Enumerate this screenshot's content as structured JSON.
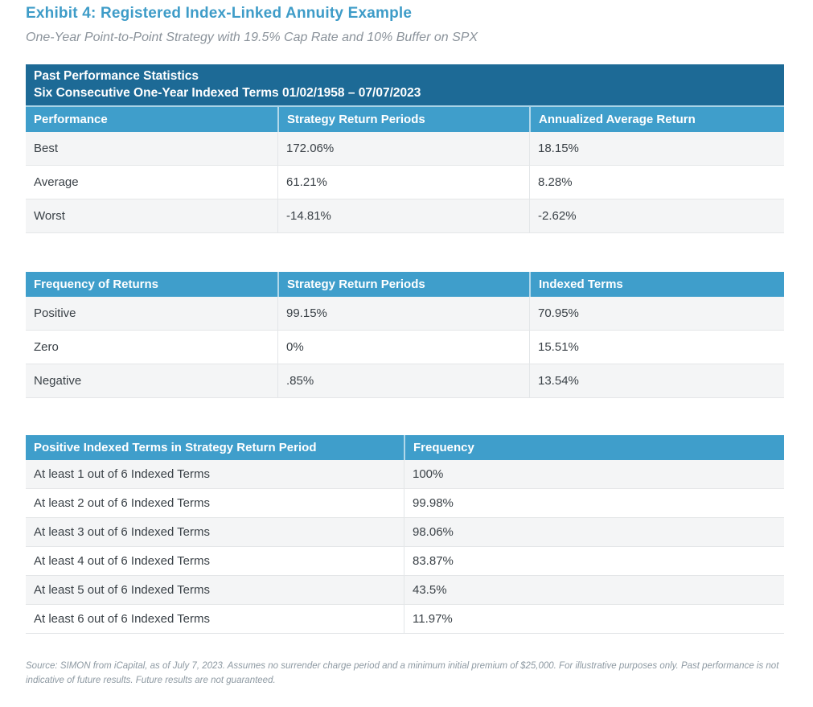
{
  "page": {
    "title": "Exhibit 4: Registered Index-Linked Annuity Example",
    "subtitle": "One-Year Point-to-Point Strategy with 19.5% Cap Rate and 10% Buffer on SPX",
    "source_note": "Source: SIMON from iCapital, as of July 7, 2023. Assumes no surrender charge period and a minimum initial premium of $25,000. For illustrative purposes only. Past performance is not indicative of future results. Future results are not guaranteed."
  },
  "colors": {
    "title_blue": "#3e9cc8",
    "banner_blue": "#1d6a96",
    "header_blue": "#3f9ecb",
    "row_alt_bg": "#f4f5f6",
    "body_text": "#3a4147",
    "muted_text": "#8d99a2"
  },
  "tables": [
    {
      "name": "past-performance-statistics",
      "banner_line1": "Past Performance Statistics",
      "banner_line2": "Six Consecutive One-Year Indexed Terms 01/02/1958 – 07/07/2023",
      "columns": [
        "Performance",
        "Strategy Return Periods",
        "Annualized Average Return"
      ],
      "rows": [
        [
          "Best",
          "172.06%",
          "18.15%"
        ],
        [
          "Average",
          "61.21%",
          "8.28%"
        ],
        [
          "Worst",
          "-14.81%",
          "-2.62%"
        ]
      ]
    },
    {
      "name": "frequency-of-returns",
      "columns": [
        "Frequency of Returns",
        "Strategy Return Periods",
        "Indexed Terms"
      ],
      "rows": [
        [
          "Positive",
          "99.15%",
          "70.95%"
        ],
        [
          "Zero",
          "0%",
          "15.51%"
        ],
        [
          "Negative",
          ".85%",
          "13.54%"
        ]
      ]
    },
    {
      "name": "positive-indexed-terms-frequency",
      "columns": [
        "Positive Indexed Terms in Strategy Return Period",
        "Frequency"
      ],
      "rows": [
        [
          "At least 1 out of 6 Indexed Terms",
          "100%"
        ],
        [
          "At least 2 out of 6 Indexed Terms",
          "99.98%"
        ],
        [
          "At least 3 out of 6 Indexed Terms",
          "98.06%"
        ],
        [
          "At least 4 out of 6 Indexed Terms",
          "83.87%"
        ],
        [
          "At least 5 out of 6 Indexed Terms",
          "43.5%"
        ],
        [
          "At least 6 out of 6 Indexed Terms",
          "11.97%"
        ]
      ]
    }
  ]
}
